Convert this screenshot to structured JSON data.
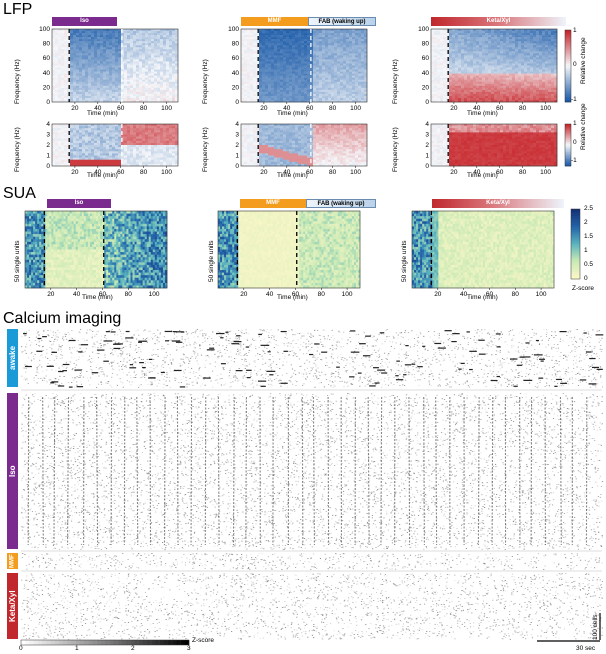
{
  "sections": {
    "lfp": "LFP",
    "sua": "SUA",
    "calcium": "Calcium imaging"
  },
  "conditions": {
    "iso": "Iso",
    "mmf": "MMF",
    "fab": "FAB (waking up)",
    "keta": "Keta/Xyl",
    "awake": "awake"
  },
  "colors": {
    "iso": "#7b2a8e",
    "mmf": "#f39c1e",
    "fab": "#cfe0f2",
    "keta": "#c0282d",
    "awake": "#1a9ad6",
    "blue": "#1a5aa8",
    "red": "#c7262b",
    "sua_low": "#fbf7c8",
    "sua_high": "#1a4f8a"
  },
  "axes": {
    "time_label": "Time (min)",
    "freq_label": "Frequency (Hz)",
    "units_label": "50 single units",
    "time_ticks": [
      "20",
      "40",
      "60",
      "80",
      "100"
    ],
    "freq_ticks_high": [
      "0",
      "20",
      "40",
      "60",
      "80",
      "100"
    ],
    "freq_ticks_low": [
      "0",
      "1",
      "2",
      "3",
      "4"
    ]
  },
  "colorbars": {
    "relative_change": {
      "label": "Relative change",
      "ticks": [
        "1",
        "0",
        "-1"
      ]
    },
    "sua_zscore": {
      "label": "Z-score",
      "ticks": [
        "2.5",
        "2",
        "1.5",
        "1",
        "0.5",
        "0"
      ]
    },
    "calcium_zscore": {
      "label": "Z-score",
      "ticks": [
        "0",
        "1",
        "2",
        "3"
      ]
    }
  },
  "scalebars": {
    "cells": "100 cells",
    "time": "30 sec"
  }
}
